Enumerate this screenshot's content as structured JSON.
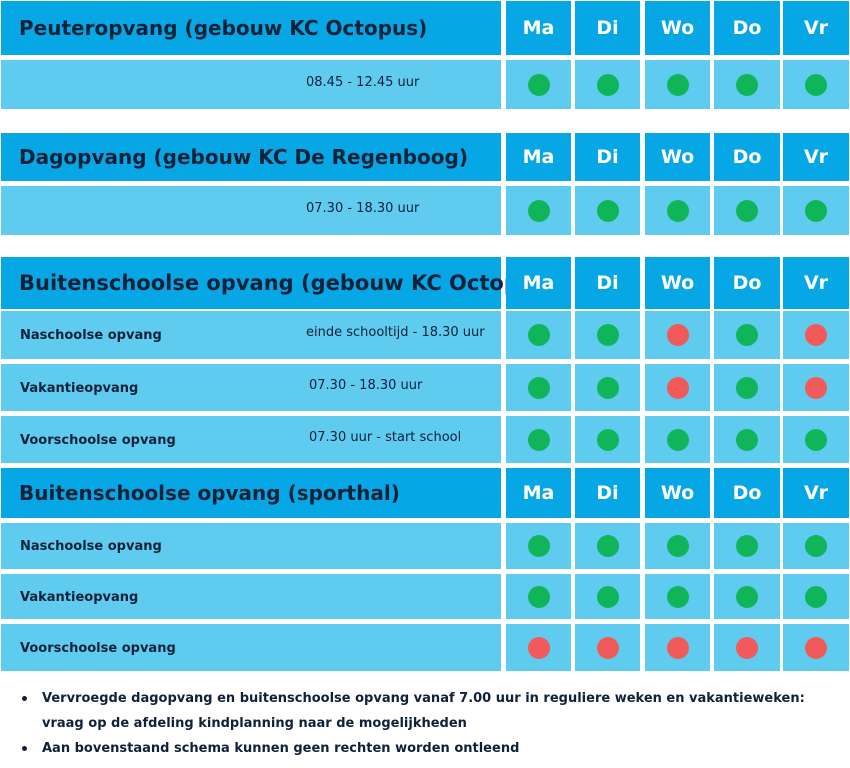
{
  "days": [
    "Ma",
    "Di",
    "Wo",
    "Do",
    "Vr"
  ],
  "colors": {
    "header_bg": "#06a7e4",
    "row_bg": "#5ecbef",
    "available": "#10b55a",
    "unavailable": "#f25a5a",
    "title_text": "#10213a",
    "day_text": "#ffffff"
  },
  "sections": [
    {
      "title": "Peuteropvang (gebouw KC Octopus)",
      "rows": [
        {
          "label": "",
          "time": "08.45 - 12.45 uur",
          "status": [
            "available",
            "available",
            "available",
            "available",
            "available"
          ]
        }
      ]
    },
    {
      "title": "Dagopvang (gebouw KC De Regenboog)",
      "rows": [
        {
          "label": "",
          "time": "07.30 - 18.30 uur",
          "status": [
            "available",
            "available",
            "available",
            "available",
            "available"
          ]
        }
      ]
    },
    {
      "title": "Buitenschoolse opvang (gebouw KC Octopus)",
      "rows": [
        {
          "label": "Naschoolse opvang",
          "time": "einde schooltijd - 18.30 uur",
          "status": [
            "available",
            "available",
            "unavailable",
            "available",
            "unavailable"
          ]
        },
        {
          "label": "Vakantieopvang",
          "time": "07.30 - 18.30 uur",
          "status": [
            "available",
            "available",
            "unavailable",
            "available",
            "unavailable"
          ]
        },
        {
          "label": "Voorschoolse opvang",
          "time": "07.30 uur - start school",
          "status": [
            "available",
            "available",
            "available",
            "available",
            "available"
          ]
        }
      ]
    },
    {
      "title": "Buitenschoolse opvang (sporthal)",
      "rows": [
        {
          "label": "Naschoolse opvang",
          "time": "",
          "status": [
            "available",
            "available",
            "available",
            "available",
            "available"
          ]
        },
        {
          "label": "Vakantieopvang",
          "time": "",
          "status": [
            "available",
            "available",
            "available",
            "available",
            "available"
          ]
        },
        {
          "label": "Voorschoolse opvang",
          "time": "",
          "status": [
            "unavailable",
            "unavailable",
            "unavailable",
            "unavailable",
            "unavailable"
          ]
        }
      ]
    }
  ],
  "notes": [
    "Vervroegde dagopvang en buitenschoolse opvang vanaf 7.00 uur in reguliere weken en vakantieweken: vraag op de afdeling kindplanning naar de mogelijkheden",
    "Aan bovenstaand schema kunnen geen rechten worden ontleend"
  ]
}
